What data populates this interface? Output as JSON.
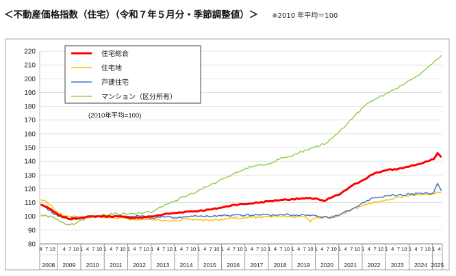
{
  "header": {
    "title": "＜不動産価格指数（住宅）（令和７年５月分・季節調整値）＞",
    "note": "※2010 年平均＝100"
  },
  "chart_data": {
    "type": "line",
    "title": "",
    "ylim": [
      80,
      220
    ],
    "yticks": [
      80,
      90,
      100,
      110,
      120,
      130,
      140,
      150,
      160,
      170,
      180,
      190,
      200,
      210,
      220
    ],
    "xstart": "2008-04",
    "xend": "2025-05",
    "years": [
      "2008",
      "2009",
      "2010",
      "2011",
      "2012",
      "2013",
      "2014",
      "2015",
      "2016",
      "2017",
      "2018",
      "2019",
      "2020",
      "2021",
      "2022",
      "2023",
      "2024",
      "2025"
    ],
    "month_ticks": [
      "4",
      "7",
      "10",
      "1"
    ],
    "last_year_ticks": [
      "1",
      "4"
    ],
    "grid": true,
    "legend_position": "top-left",
    "base_note": "(2010年平均=100)",
    "series": [
      {
        "name": "住宅総合",
        "color": "#ff0000",
        "width": 3.0,
        "anchors": [
          [
            "2008-04",
            108.5
          ],
          [
            "2008-07",
            107
          ],
          [
            "2009-01",
            101
          ],
          [
            "2009-04",
            99.5
          ],
          [
            "2009-07",
            98
          ],
          [
            "2010-01",
            99
          ],
          [
            "2010-07",
            100
          ],
          [
            "2011-01",
            100
          ],
          [
            "2011-07",
            100
          ],
          [
            "2012-01",
            99
          ],
          [
            "2012-07",
            99
          ],
          [
            "2013-01",
            100
          ],
          [
            "2013-07",
            101.5
          ],
          [
            "2014-01",
            102.5
          ],
          [
            "2014-07",
            103.5
          ],
          [
            "2015-01",
            104
          ],
          [
            "2015-07",
            105
          ],
          [
            "2016-01",
            106.5
          ],
          [
            "2016-07",
            108.5
          ],
          [
            "2017-01",
            109
          ],
          [
            "2017-07",
            110
          ],
          [
            "2018-01",
            111
          ],
          [
            "2018-07",
            112
          ],
          [
            "2019-01",
            112.5
          ],
          [
            "2019-07",
            113
          ],
          [
            "2020-01",
            113
          ],
          [
            "2020-05",
            111
          ],
          [
            "2020-10",
            114.5
          ],
          [
            "2021-01",
            116
          ],
          [
            "2021-07",
            122
          ],
          [
            "2022-01",
            126.5
          ],
          [
            "2022-07",
            131.5
          ],
          [
            "2023-01",
            133.5
          ],
          [
            "2023-07",
            134.5
          ],
          [
            "2024-01",
            136.5
          ],
          [
            "2024-07",
            138.5
          ],
          [
            "2024-10",
            140
          ],
          [
            "2025-01",
            141.5
          ],
          [
            "2025-03",
            146
          ],
          [
            "2025-05",
            143
          ]
        ]
      },
      {
        "name": "住宅地",
        "color": "#ffc000",
        "width": 1.5,
        "anchors": [
          [
            "2008-04",
            112
          ],
          [
            "2008-07",
            111
          ],
          [
            "2009-01",
            102
          ],
          [
            "2009-07",
            100
          ],
          [
            "2010-01",
            99.5
          ],
          [
            "2010-07",
            100
          ],
          [
            "2011-01",
            99
          ],
          [
            "2011-07",
            98.5
          ],
          [
            "2012-01",
            98
          ],
          [
            "2012-07",
            97.5
          ],
          [
            "2013-01",
            97.5
          ],
          [
            "2013-07",
            97
          ],
          [
            "2014-01",
            97
          ],
          [
            "2014-07",
            98
          ],
          [
            "2015-01",
            97.5
          ],
          [
            "2015-07",
            97.5
          ],
          [
            "2016-01",
            97.5
          ],
          [
            "2016-07",
            98.5
          ],
          [
            "2017-01",
            99
          ],
          [
            "2017-07",
            99.5
          ],
          [
            "2018-01",
            100
          ],
          [
            "2018-07",
            100
          ],
          [
            "2019-01",
            99.5
          ],
          [
            "2019-07",
            100
          ],
          [
            "2019-10",
            96
          ],
          [
            "2020-01",
            99.5
          ],
          [
            "2020-07",
            99
          ],
          [
            "2021-01",
            101
          ],
          [
            "2021-07",
            104.5
          ],
          [
            "2022-01",
            108
          ],
          [
            "2022-07",
            110.5
          ],
          [
            "2023-01",
            112
          ],
          [
            "2023-07",
            114
          ],
          [
            "2024-01",
            115
          ],
          [
            "2024-07",
            116
          ],
          [
            "2025-01",
            116.5
          ],
          [
            "2025-05",
            117.5
          ]
        ]
      },
      {
        "name": "戸建住宅",
        "color": "#4472c4",
        "width": 1.5,
        "anchors": [
          [
            "2008-04",
            109
          ],
          [
            "2008-07",
            106
          ],
          [
            "2009-01",
            100
          ],
          [
            "2009-07",
            98.5
          ],
          [
            "2010-01",
            99.5
          ],
          [
            "2010-07",
            100
          ],
          [
            "2011-01",
            100
          ],
          [
            "2011-07",
            100.5
          ],
          [
            "2012-01",
            100
          ],
          [
            "2012-07",
            100
          ],
          [
            "2013-01",
            99
          ],
          [
            "2013-07",
            99.5
          ],
          [
            "2014-01",
            99
          ],
          [
            "2014-07",
            99.5
          ],
          [
            "2015-01",
            100
          ],
          [
            "2015-07",
            100
          ],
          [
            "2016-01",
            100.5
          ],
          [
            "2016-07",
            101
          ],
          [
            "2017-01",
            101
          ],
          [
            "2017-07",
            101
          ],
          [
            "2018-01",
            101
          ],
          [
            "2018-07",
            101.5
          ],
          [
            "2019-01",
            101
          ],
          [
            "2019-07",
            101
          ],
          [
            "2020-01",
            100.5
          ],
          [
            "2020-07",
            99
          ],
          [
            "2021-01",
            101
          ],
          [
            "2021-07",
            105
          ],
          [
            "2022-01",
            110
          ],
          [
            "2022-07",
            113.5
          ],
          [
            "2023-01",
            115
          ],
          [
            "2023-07",
            115.5
          ],
          [
            "2024-01",
            116
          ],
          [
            "2024-07",
            116.5
          ],
          [
            "2025-01",
            117
          ],
          [
            "2025-03",
            124
          ],
          [
            "2025-05",
            118.5
          ]
        ]
      },
      {
        "name": "マンション（区分所有）",
        "color": "#92d050",
        "width": 1.5,
        "anchors": [
          [
            "2008-04",
            101
          ],
          [
            "2008-10",
            99.5
          ],
          [
            "2009-01",
            97.5
          ],
          [
            "2009-04",
            95
          ],
          [
            "2009-07",
            94
          ],
          [
            "2009-10",
            95
          ],
          [
            "2010-01",
            97.5
          ],
          [
            "2010-07",
            100
          ],
          [
            "2011-01",
            101
          ],
          [
            "2011-07",
            102
          ],
          [
            "2012-01",
            101.5
          ],
          [
            "2012-07",
            102.5
          ],
          [
            "2013-01",
            103
          ],
          [
            "2013-07",
            108
          ],
          [
            "2014-01",
            111.5
          ],
          [
            "2014-07",
            115
          ],
          [
            "2015-01",
            119
          ],
          [
            "2015-07",
            123
          ],
          [
            "2016-01",
            127
          ],
          [
            "2016-07",
            131.5
          ],
          [
            "2017-01",
            135
          ],
          [
            "2017-07",
            137
          ],
          [
            "2018-01",
            138.5
          ],
          [
            "2018-07",
            142.5
          ],
          [
            "2019-01",
            144
          ],
          [
            "2019-07",
            148
          ],
          [
            "2020-01",
            151
          ],
          [
            "2020-07",
            154
          ],
          [
            "2021-01",
            162
          ],
          [
            "2021-07",
            170.5
          ],
          [
            "2022-01",
            179.5
          ],
          [
            "2022-07",
            185
          ],
          [
            "2023-01",
            189.5
          ],
          [
            "2023-07",
            193.5
          ],
          [
            "2024-01",
            199
          ],
          [
            "2024-07",
            204.5
          ],
          [
            "2025-01",
            212
          ],
          [
            "2025-05",
            217
          ]
        ]
      }
    ]
  }
}
